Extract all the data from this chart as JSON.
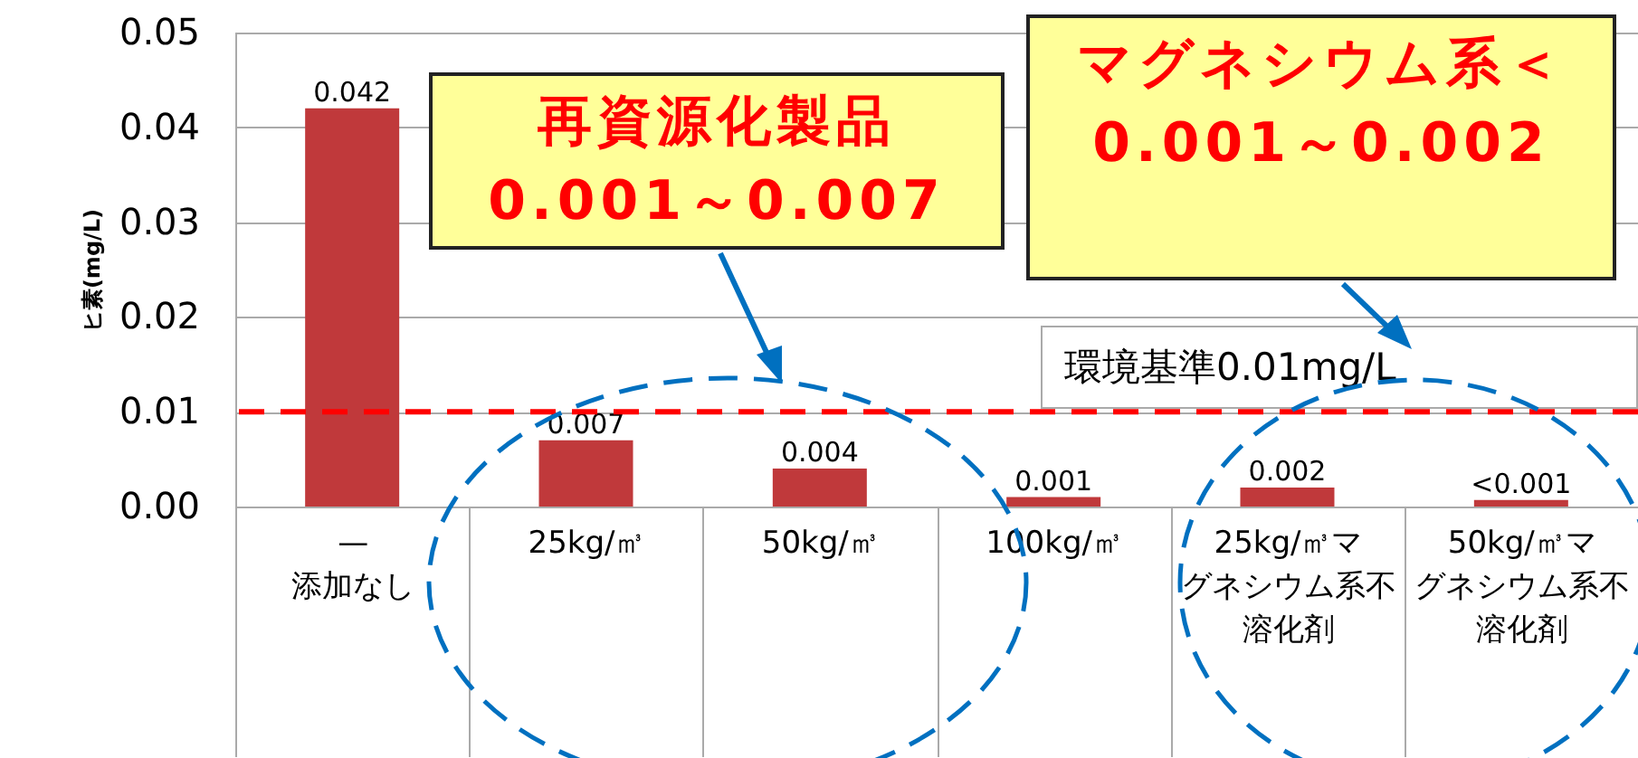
{
  "chart_data": {
    "type": "bar",
    "ylabel": "ヒ素(mg/L)",
    "categories": [
      "—\n添加なし",
      "25kg/㎥",
      "50kg/㎥",
      "100kg/㎥",
      "25kg/㎥マグネシウム系不溶化剤",
      "50kg/㎥マグネシウム系不溶化剤"
    ],
    "values": [
      0.042,
      0.007,
      0.004,
      0.001,
      0.002,
      0.0007
    ],
    "value_labels": [
      "0.042",
      "0.007",
      "0.004",
      "0.001",
      "0.002",
      "<0.001"
    ],
    "color": "#c0393b",
    "ylim": [
      0,
      0.05
    ],
    "yticks": [
      {
        "value": 0,
        "label": "0.00"
      },
      {
        "value": 0.01,
        "label": "0.01"
      },
      {
        "value": 0.02,
        "label": "0.02"
      },
      {
        "value": 0.03,
        "label": "0.03"
      },
      {
        "value": 0.04,
        "label": "0.04"
      },
      {
        "value": 0.05,
        "label": "0.05"
      }
    ],
    "grid": "y",
    "ref_lines": [
      {
        "axis": "y",
        "value": 0.01,
        "label": "環境基準0.01mg/L",
        "color": "#ff0000",
        "line_style": "dashed"
      }
    ],
    "annotations": [
      "再資源化製品\n0.001～0.007",
      "マグネシウム系＜0.001～0.002"
    ]
  }
}
